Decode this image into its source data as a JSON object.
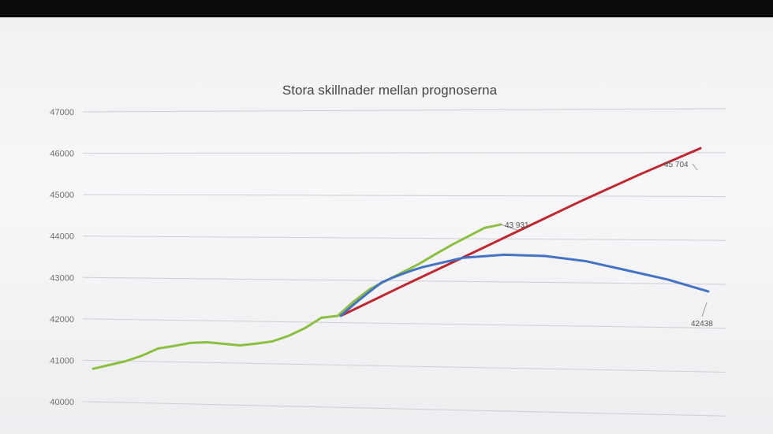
{
  "chart_data": {
    "type": "line",
    "title": "Stora skillnader mellan prognoserna",
    "xlabel": "",
    "ylabel": "",
    "ylim": [
      40000,
      47000
    ],
    "yticks": [
      "40000",
      "41000",
      "42000",
      "43000",
      "44000",
      "45000",
      "46000",
      "47000"
    ],
    "grid": true,
    "colors": {
      "green": "#8cbf3f",
      "red": "#c0262d",
      "blue": "#4472c4"
    },
    "series": [
      {
        "color": "green",
        "values": [
          40380,
          40480,
          40580,
          40720,
          40900,
          40970,
          41050,
          41070,
          41040,
          41010,
          41060,
          41120,
          41260,
          41450,
          41700,
          41750,
          42100,
          42400,
          42600,
          42800,
          43000,
          43230,
          43450,
          43650,
          43850,
          43931
        ]
      },
      {
        "color": "red",
        "values": [
          41750,
          42450,
          43130,
          43810,
          44480,
          45110,
          45704
        ]
      },
      {
        "color": "blue",
        "values": [
          41750,
          42550,
          42920,
          43150,
          43230,
          43210,
          43100,
          42900,
          42700,
          42438
        ]
      }
    ],
    "annotations": [
      {
        "text": "43 931"
      },
      {
        "text": "45 704"
      },
      {
        "text": "42438"
      }
    ]
  }
}
